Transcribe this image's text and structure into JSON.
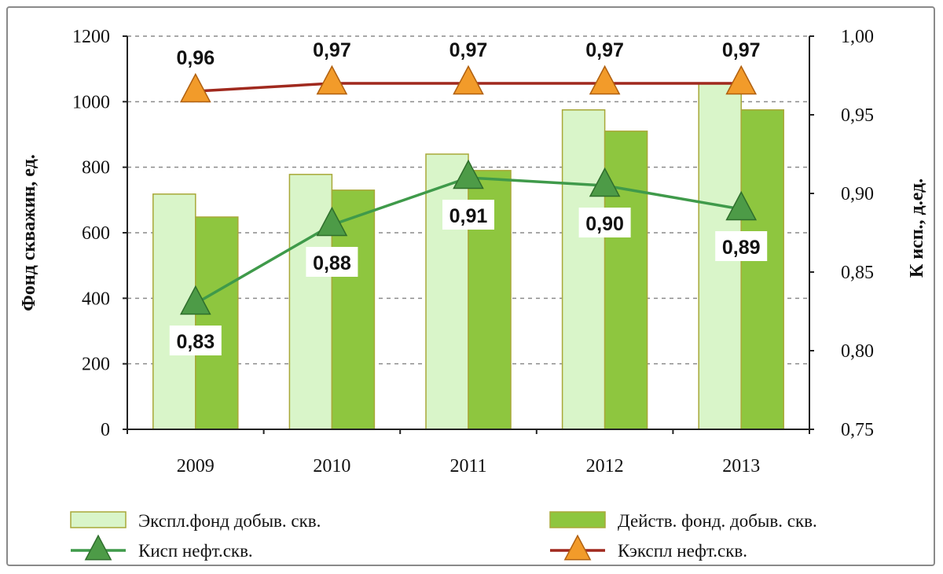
{
  "chart_data": {
    "type": "bar+line",
    "categories": [
      "2009",
      "2010",
      "2011",
      "2012",
      "2013"
    ],
    "y_left": {
      "label": "Фонд скважин, ед.",
      "range": [
        0,
        1200
      ],
      "ticks": [
        "0",
        "200",
        "400",
        "600",
        "800",
        "1000",
        "1200"
      ]
    },
    "y_right": {
      "label": "К исп., д.ед.",
      "range": [
        0.75,
        1.0
      ],
      "ticks": [
        "0,75",
        "0,80",
        "0,85",
        "0,90",
        "0,95",
        "1,00"
      ]
    },
    "grid": "dashed horizontal",
    "legend_position": "bottom",
    "series": [
      {
        "name": "Экспл.фонд добыв. скв.",
        "kind": "bar",
        "axis": "left",
        "color": "#d9f5c9",
        "values": [
          718,
          778,
          840,
          975,
          1055
        ]
      },
      {
        "name": "Действ. фонд. добыв. скв.",
        "kind": "bar",
        "axis": "left",
        "color": "#8ec63f",
        "values": [
          648,
          730,
          790,
          910,
          975
        ]
      },
      {
        "name": "Кисп нефт.скв.",
        "kind": "line",
        "axis": "right",
        "color": "#3f9a4a",
        "marker_color": "#4d9b47",
        "values": [
          0.83,
          0.88,
          0.91,
          0.905,
          0.89
        ],
        "labels": [
          "0,83",
          "0,88",
          "0,91",
          "0,90",
          "0,89"
        ]
      },
      {
        "name": "Кэкспл нефт.скв.",
        "kind": "line",
        "axis": "right",
        "color": "#a0291e",
        "marker_color": "#f29b2a",
        "values": [
          0.965,
          0.97,
          0.97,
          0.97,
          0.97
        ],
        "labels": [
          "0,96",
          "0,97",
          "0,97",
          "0,97",
          "0,97"
        ]
      }
    ]
  }
}
